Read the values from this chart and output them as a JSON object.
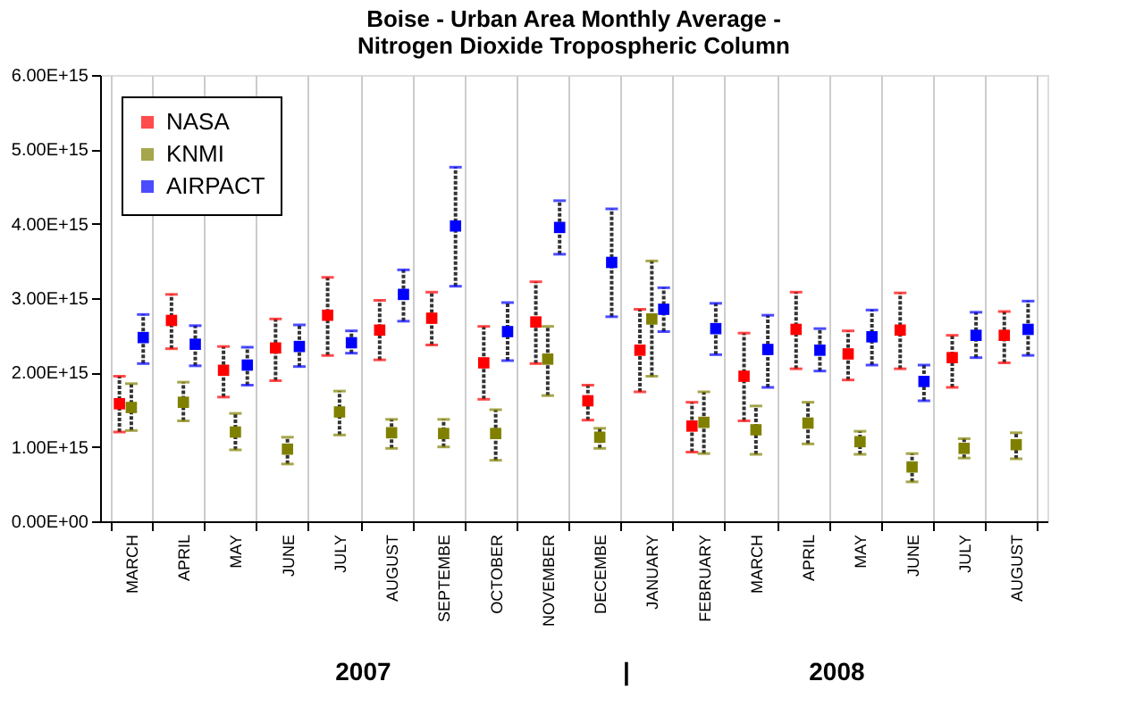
{
  "chart_data": {
    "type": "scatter",
    "title": "Boise - Urban Area Monthly Average -\nNitrogen Dioxide Tropospheric Column",
    "categories": [
      "MARCH",
      "APRIL",
      "MAY",
      "JUNE",
      "JULY",
      "AUGUST",
      "SEPTEMBE",
      "OCTOBER",
      "NOVEMBER",
      "DECEMBE",
      "JANUARY",
      "FEBRUARY",
      "MARCH",
      "APRIL",
      "MAY",
      "JUNE",
      "JULY",
      "AUGUST"
    ],
    "series": [
      {
        "name": "NASA",
        "color": "#ff0000",
        "values": [
          1580000000000000.0,
          2700000000000000.0,
          2030000000000000.0,
          2330000000000000.0,
          2770000000000000.0,
          2570000000000000.0,
          2730000000000000.0,
          2130000000000000.0,
          2680000000000000.0,
          1620000000000000.0,
          2300000000000000.0,
          1280000000000000.0,
          1950000000000000.0,
          2580000000000000.0,
          2250000000000000.0,
          2570000000000000.0,
          2200000000000000.0,
          2500000000000000.0
        ],
        "errors": [
          [
            1200000000000000.0,
            1950000000000000.0
          ],
          [
            2320000000000000.0,
            3050000000000000.0
          ],
          [
            1670000000000000.0,
            2350000000000000.0
          ],
          [
            1890000000000000.0,
            2720000000000000.0
          ],
          [
            2230000000000000.0,
            3280000000000000.0
          ],
          [
            2170000000000000.0,
            2970000000000000.0
          ],
          [
            2370000000000000.0,
            3080000000000000.0
          ],
          [
            1640000000000000.0,
            2620000000000000.0
          ],
          [
            2120000000000000.0,
            3220000000000000.0
          ],
          [
            1360000000000000.0,
            1830000000000000.0
          ],
          [
            1740000000000000.0,
            2850000000000000.0
          ],
          [
            930000000000000.0,
            1600000000000000.0
          ],
          [
            1350000000000000.0,
            2530000000000000.0
          ],
          [
            2050000000000000.0,
            3080000000000000.0
          ],
          [
            1900000000000000.0,
            2560000000000000.0
          ],
          [
            2050000000000000.0,
            3070000000000000.0
          ],
          [
            1800000000000000.0,
            2500000000000000.0
          ],
          [
            2130000000000000.0,
            2820000000000000.0
          ]
        ]
      },
      {
        "name": "KNMI",
        "color": "#808000",
        "values": [
          1530000000000000.0,
          1600000000000000.0,
          1200000000000000.0,
          970000000000000.0,
          1470000000000000.0,
          1190000000000000.0,
          1180000000000000.0,
          1180000000000000.0,
          2180000000000000.0,
          1130000000000000.0,
          2720000000000000.0,
          1330000000000000.0,
          1230000000000000.0,
          1320000000000000.0,
          1070000000000000.0,
          730000000000000.0,
          980000000000000.0,
          1030000000000000.0
        ],
        "errors": [
          [
            1220000000000000.0,
            1850000000000000.0
          ],
          [
            1350000000000000.0,
            1870000000000000.0
          ],
          [
            960000000000000.0,
            1450000000000000.0
          ],
          [
            770000000000000.0,
            1130000000000000.0
          ],
          [
            1160000000000000.0,
            1750000000000000.0
          ],
          [
            980000000000000.0,
            1370000000000000.0
          ],
          [
            1000000000000000.0,
            1370000000000000.0
          ],
          [
            820000000000000.0,
            1500000000000000.0
          ],
          [
            1690000000000000.0,
            2620000000000000.0
          ],
          [
            980000000000000.0,
            1250000000000000.0
          ],
          [
            1950000000000000.0,
            3500000000000000.0
          ],
          [
            910000000000000.0,
            1740000000000000.0
          ],
          [
            900000000000000.0,
            1550000000000000.0
          ],
          [
            1040000000000000.0,
            1600000000000000.0
          ],
          [
            900000000000000.0,
            1210000000000000.0
          ],
          [
            530000000000000.0,
            910000000000000.0
          ],
          [
            850000000000000.0,
            1110000000000000.0
          ],
          [
            840000000000000.0,
            1190000000000000.0
          ]
        ]
      },
      {
        "name": "AIRPACT",
        "color": "#0000ff",
        "values": [
          2470000000000000.0,
          2380000000000000.0,
          2100000000000000.0,
          2350000000000000.0,
          2400000000000000.0,
          3050000000000000.0,
          3970000000000000.0,
          2550000000000000.0,
          3950000000000000.0,
          3480000000000000.0,
          2850000000000000.0,
          2590000000000000.0,
          2310000000000000.0,
          2300000000000000.0,
          2480000000000000.0,
          1880000000000000.0,
          2500000000000000.0,
          2580000000000000.0
        ],
        "errors": [
          [
            2120000000000000.0,
            2780000000000000.0
          ],
          [
            2090000000000000.0,
            2630000000000000.0
          ],
          [
            1830000000000000.0,
            2340000000000000.0
          ],
          [
            2080000000000000.0,
            2640000000000000.0
          ],
          [
            2260000000000000.0,
            2560000000000000.0
          ],
          [
            2690000000000000.0,
            3380000000000000.0
          ],
          [
            3160000000000000.0,
            4760000000000000.0
          ],
          [
            2160000000000000.0,
            2940000000000000.0
          ],
          [
            3590000000000000.0,
            4310000000000000.0
          ],
          [
            2750000000000000.0,
            4200000000000000.0
          ],
          [
            2550000000000000.0,
            3140000000000000.0
          ],
          [
            2240000000000000.0,
            2930000000000000.0
          ],
          [
            1800000000000000.0,
            2770000000000000.0
          ],
          [
            2020000000000000.0,
            2590000000000000.0
          ],
          [
            2100000000000000.0,
            2840000000000000.0
          ],
          [
            1620000000000000.0,
            2100000000000000.0
          ],
          [
            2200000000000000.0,
            2810000000000000.0
          ],
          [
            2230000000000000.0,
            2960000000000000.0
          ]
        ]
      }
    ],
    "ylim": [
      0,
      6000000000000000.0
    ],
    "yticks": [
      {
        "value": 0,
        "label": "0.00E+00"
      },
      {
        "value": 1000000000000000.0,
        "label": "1.00E+15"
      },
      {
        "value": 2000000000000000.0,
        "label": "2.00E+15"
      },
      {
        "value": 3000000000000000.0,
        "label": "3.00E+15"
      },
      {
        "value": 4000000000000000.0,
        "label": "4.00E+15"
      },
      {
        "value": 5000000000000000.0,
        "label": "5.00E+15"
      },
      {
        "value": 6000000000000000.0,
        "label": "6.00E+15"
      }
    ],
    "grid": "x",
    "legend": "top left",
    "marker": "square",
    "annotations": [
      "2007",
      "|",
      "2008"
    ]
  }
}
